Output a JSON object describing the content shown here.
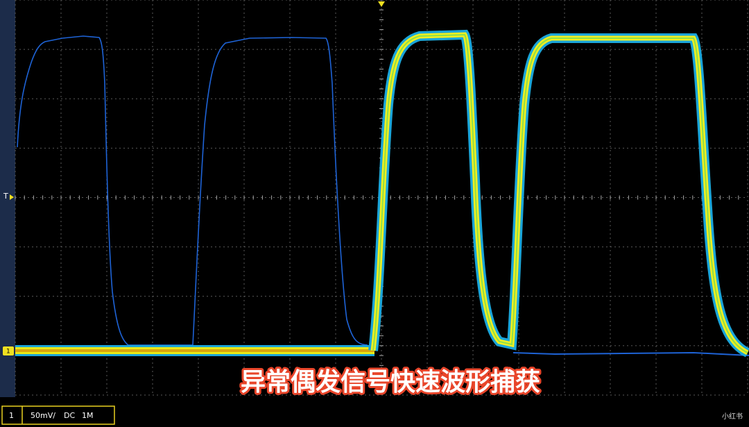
{
  "trigger_marker": "T",
  "measurement": {
    "channel": "1",
    "scale": "50mV/",
    "coupling": "DC",
    "impedance": "1M"
  },
  "caption": "异常偶发信号快速波形捕获",
  "watermark": "小红书"
}
